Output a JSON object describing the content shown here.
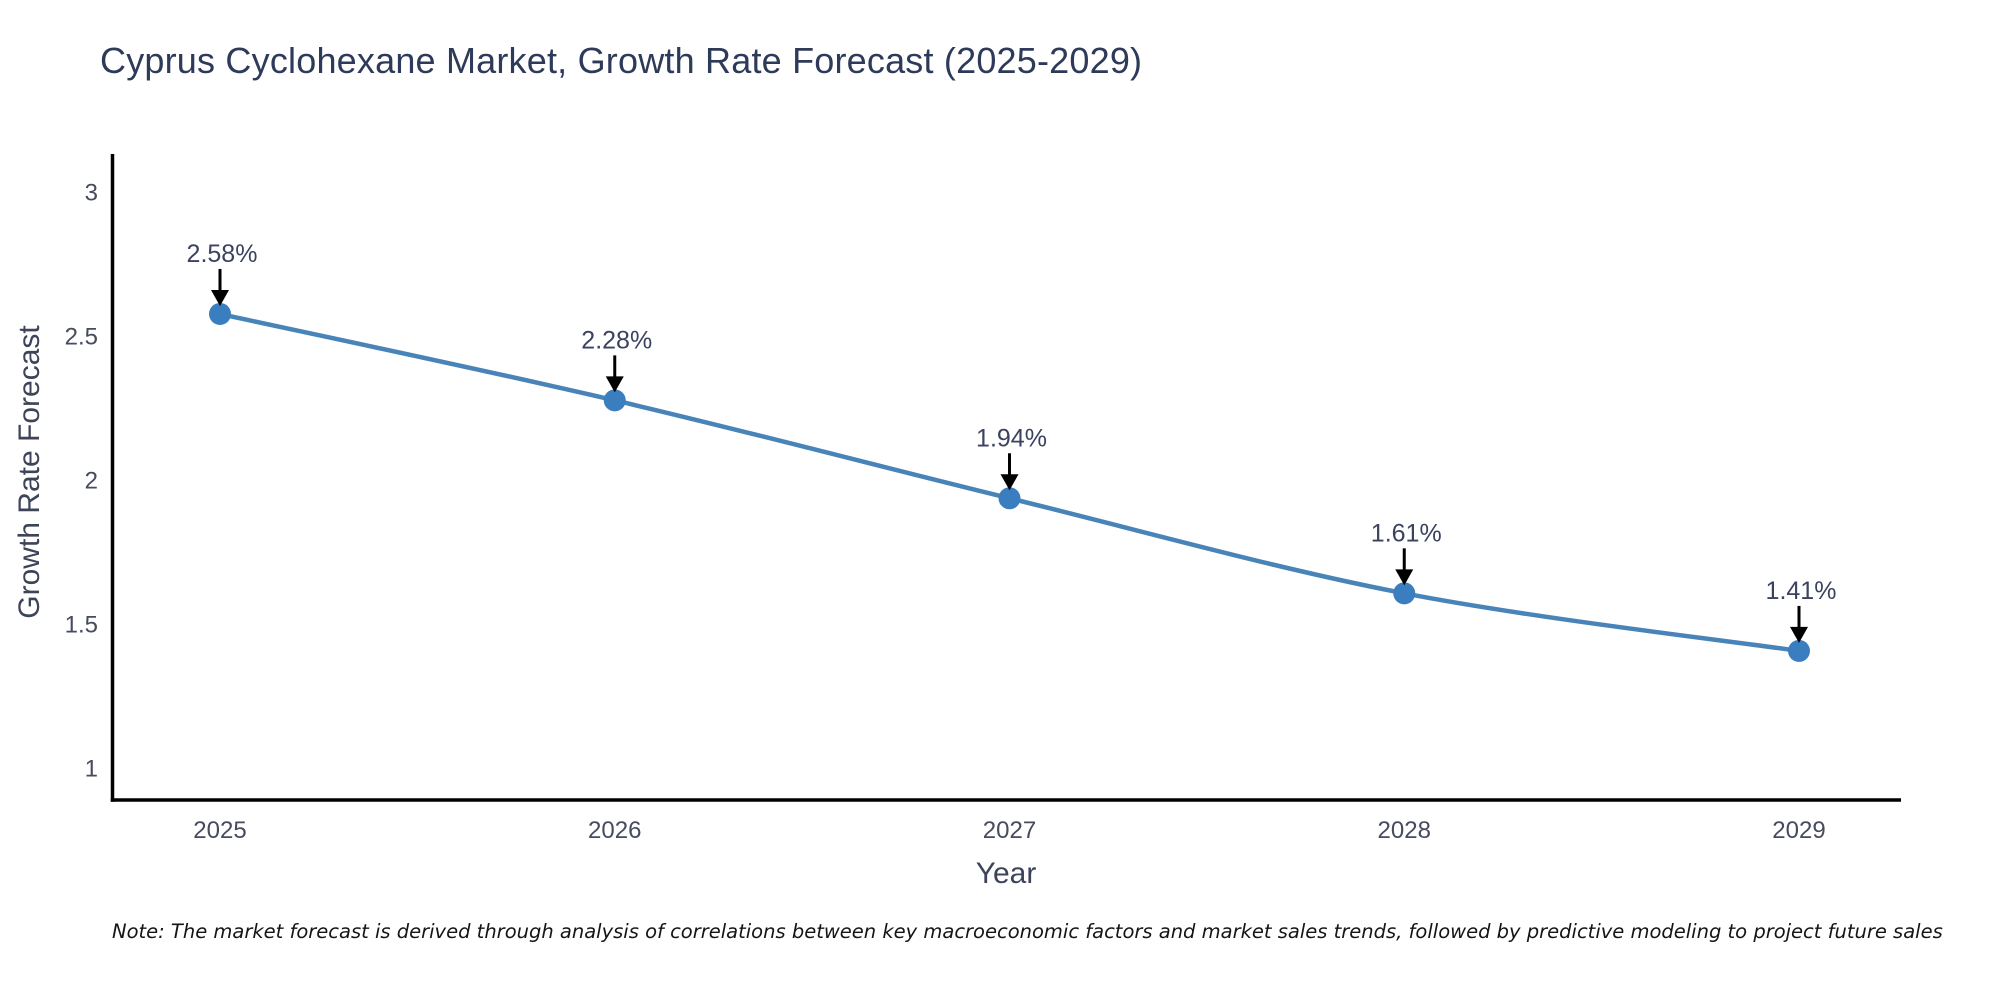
{
  "page": {
    "background_color": "#ffffff"
  },
  "chart_data": {
    "type": "line",
    "title": "Cyprus Cyclohexane Market, Growth Rate Forecast (2025-2029)",
    "xlabel": "Year",
    "ylabel": "Growth Rate Forecast",
    "x": [
      2025,
      2026,
      2027,
      2028,
      2029
    ],
    "series": [
      {
        "name": "Growth Rate Forecast",
        "values": [
          2.58,
          2.28,
          1.94,
          1.61,
          1.41
        ]
      }
    ],
    "point_labels": [
      "2.58%",
      "2.28%",
      "1.94%",
      "1.61%",
      "1.41%"
    ],
    "yticks": [
      3,
      2.5,
      2,
      1.5,
      1
    ],
    "ylim": [
      0.9,
      3.15
    ],
    "grid": false,
    "legend_position": "none",
    "annotation_style": "black-arrow-down-to-point",
    "colors": {
      "line": "#4884b8",
      "marker": "#3a7ebf",
      "arrow": "#000000",
      "axis_spine": "#000000",
      "title_text": "#2e3a59",
      "axis_title_text": "#3d4459",
      "tick_text": "#474b5e",
      "annotation_text": "#3b4260",
      "note_text": "#151515"
    },
    "note": "Note: The market forecast is derived through analysis of correlations between key macroeconomic factors and market sales trends, followed by predictive modeling to project future sales"
  }
}
